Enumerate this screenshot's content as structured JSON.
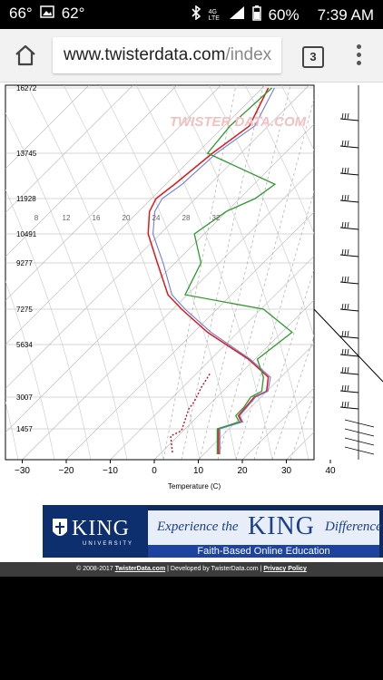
{
  "status_bar": {
    "temp1": "66°",
    "temp2": "62°",
    "network": "4G LTE",
    "battery": "60%",
    "time": "7:39 AM"
  },
  "browser": {
    "url_domain": "www.twisterdata.com",
    "url_path": "/index",
    "tab_count": "3"
  },
  "chart_data": {
    "type": "line",
    "xlabel": "Temperature (C)",
    "x_ticks": [
      -30,
      -20,
      -10,
      0,
      10,
      20,
      30,
      40
    ],
    "height_labels": [
      "16272",
      "13745",
      "11928",
      "10491",
      "9277",
      "7275",
      "5634",
      "3007",
      "1457"
    ],
    "mixing_ratio_labels": [
      "8",
      "12",
      "16",
      "20",
      "24",
      "28",
      "32"
    ],
    "watermark": "TWISTER DATA.COM",
    "colors": {
      "temperature": "#e01818",
      "virtual_temp": "#6d7de0",
      "dewpoint": "#2e9a2e",
      "parcel": "#c0101a",
      "grid": "#b0b0b0"
    },
    "series": [
      {
        "values": [
          [
            42.4,
            16272
          ],
          [
            38.1,
            14800
          ],
          [
            29.7,
            13745
          ],
          [
            21.1,
            12500
          ],
          [
            16.9,
            11928
          ],
          [
            15.4,
            11400
          ],
          [
            15.1,
            10491
          ],
          [
            17.2,
            9277
          ],
          [
            19.6,
            7900
          ],
          [
            22.7,
            7275
          ],
          [
            28.6,
            6200
          ],
          [
            37.9,
            4900
          ],
          [
            42.4,
            4000
          ],
          [
            42.0,
            3300
          ],
          [
            39.2,
            3007
          ],
          [
            37.2,
            2500
          ],
          [
            35.6,
            2100
          ],
          [
            36.3,
            1800
          ],
          [
            31.1,
            1457
          ],
          [
            31.1,
            1000
          ]
        ]
      },
      {
        "values": [
          [
            43.8,
            16272
          ],
          [
            39.3,
            14800
          ],
          [
            30.6,
            13745
          ],
          [
            22.8,
            12500
          ],
          [
            18.3,
            11928
          ],
          [
            16.6,
            11400
          ],
          [
            16.2,
            10491
          ],
          [
            18.5,
            9277
          ],
          [
            20.5,
            7900
          ],
          [
            23.5,
            7275
          ],
          [
            29.4,
            6200
          ],
          [
            38.3,
            4900
          ],
          [
            42.9,
            4000
          ],
          [
            42.3,
            3300
          ],
          [
            39.5,
            3007
          ],
          [
            37.5,
            2500
          ],
          [
            35.9,
            2100
          ],
          [
            36.6,
            1800
          ],
          [
            31.4,
            1457
          ],
          [
            31.4,
            1000
          ]
        ]
      },
      {
        "values": [
          [
            43.2,
            16272
          ],
          [
            33.7,
            14800
          ],
          [
            28.6,
            13745
          ],
          [
            43.9,
            12500
          ],
          [
            39.4,
            11928
          ],
          [
            32.8,
            11400
          ],
          [
            25.6,
            10491
          ],
          [
            27.1,
            9277
          ],
          [
            23.5,
            7900
          ],
          [
            41.3,
            7275
          ],
          [
            47.8,
            6200
          ],
          [
            39.9,
            4900
          ],
          [
            41.3,
            4000
          ],
          [
            40.9,
            3300
          ],
          [
            38.4,
            3007
          ],
          [
            36.8,
            2500
          ],
          [
            35.0,
            2100
          ],
          [
            35.8,
            1800
          ],
          [
            30.8,
            1457
          ],
          [
            30.8,
            1000
          ]
        ]
      }
    ]
  },
  "ad": {
    "logo_name": "KING",
    "logo_sub": "UNIVERSITY",
    "tag_left": "Experience the",
    "tag_main": "KING",
    "tag_right": "Difference",
    "bottom": "Faith-Based Online Education"
  },
  "footer": {
    "copyright": "© 2008-2017",
    "site_link": "TwisterData.com",
    "developed": "| Developed by TwisterData.com |",
    "privacy": "Privacy Policy"
  }
}
